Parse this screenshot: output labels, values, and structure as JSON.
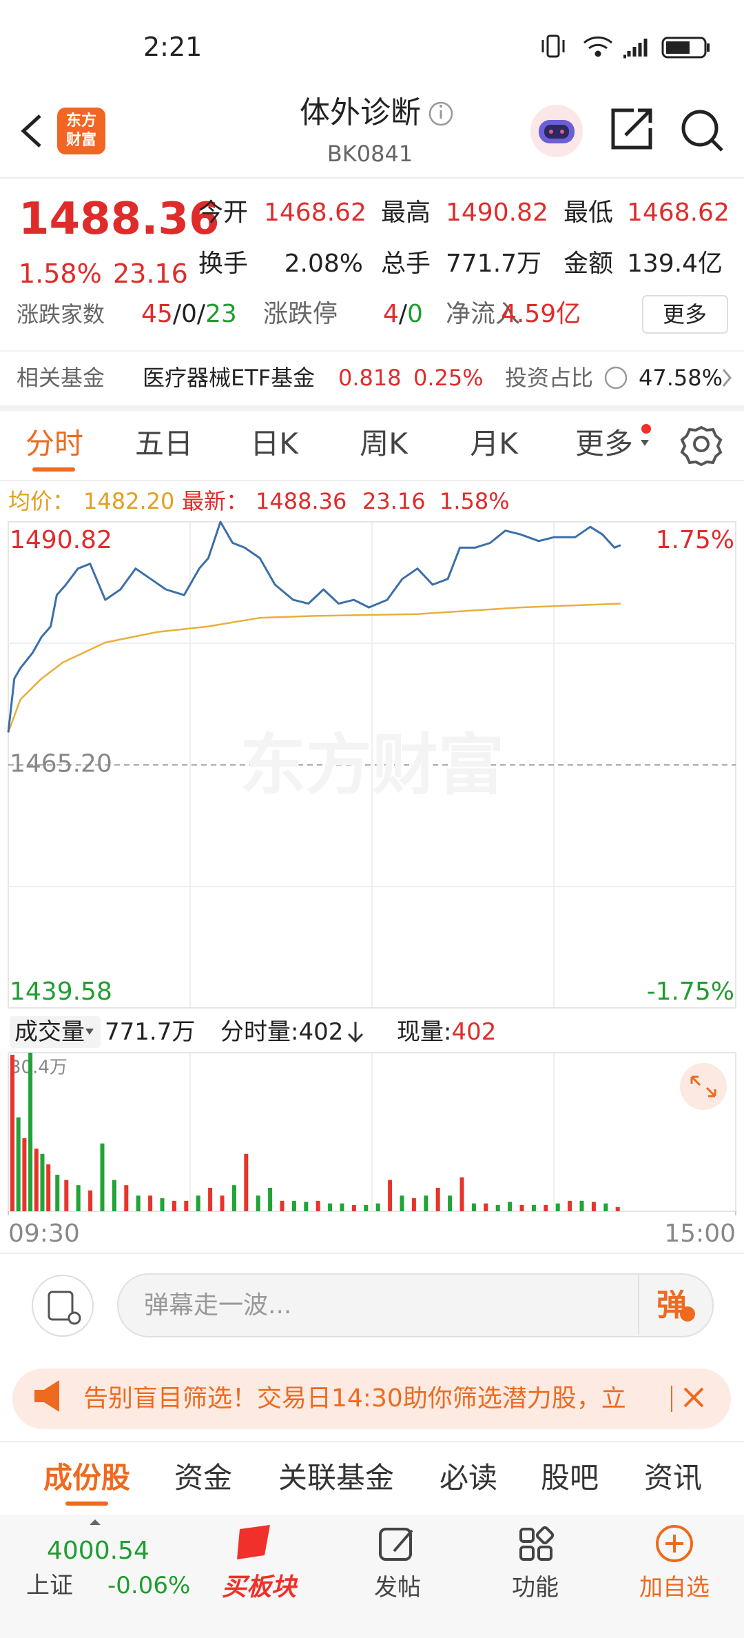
{
  "status_bar": {
    "time": "2:21"
  },
  "header": {
    "logo_line1": "东方",
    "logo_line2": "财富",
    "title": "体外诊断",
    "code": "BK0841"
  },
  "quote": {
    "price": "1488.36",
    "change_pct": "1.58%",
    "change": "23.16",
    "fields": [
      {
        "label": "今开",
        "value": "1468.62"
      },
      {
        "label": "最高",
        "value": "1490.82"
      },
      {
        "label": "最低",
        "value": "1468.62"
      },
      {
        "label": "换手",
        "value": "2.08%"
      },
      {
        "label": "总手",
        "value": "771.7万"
      },
      {
        "label": "金额",
        "value": "139.4亿"
      }
    ],
    "breadth_label": "涨跌家数",
    "breadth_up": "45",
    "breadth_flat": "0",
    "breadth_down": "23",
    "separator": "/",
    "limit_label": "涨跌停",
    "limit_up": "4",
    "limit_down": "0",
    "inflow_label": "净流入",
    "inflow_value": "4.59亿",
    "more_button": "更多"
  },
  "fund": {
    "label": "相关基金",
    "name": "医疗器械ETF基金",
    "price": "0.818",
    "change_pct": "0.25%",
    "share_label": "投资占比",
    "share_value": "47.58%"
  },
  "tabs": [
    "分时",
    "五日",
    "日K",
    "周K",
    "月K",
    "更多"
  ],
  "chart_header": {
    "avg_value": "1482.20",
    "latest_value": "1488.36",
    "change": "23.16",
    "change_pct": "1.58%"
  },
  "watermark": "东方财富",
  "volume_header": {
    "label": "成交量",
    "total": "771.7万",
    "minute_label": "分时量:",
    "minute_value": "402",
    "current_label": "现量:",
    "current_value": "402"
  },
  "chart_data": [
    {
      "type": "line",
      "xlim": [
        0,
        240
      ],
      "ylim": [
        1439.58,
        1490.82
      ],
      "yticks": [
        1490.82,
        {
          "value": 1465.2,
          "label": "1465.20"
        },
        1439.58
      ],
      "y2lim": [
        -1.75,
        1.75
      ],
      "y2ticks": [
        {
          "value": 1.75,
          "label": "1.75%"
        },
        {
          "value": -1.75,
          "label": "-1.75%"
        }
      ],
      "series": [
        {
          "name": "最新：",
          "color": "#3b6fa8",
          "x": [
            0,
            2,
            4,
            8,
            11,
            14,
            16,
            19,
            23,
            27,
            32,
            37,
            42,
            47,
            52,
            58,
            63,
            66,
            70,
            74,
            78,
            83,
            88,
            94,
            99,
            104,
            109,
            114,
            119,
            125,
            130,
            135,
            140,
            145,
            149,
            154,
            159,
            164,
            169,
            175,
            180,
            187,
            192,
            196,
            200,
            202
          ],
          "values": [
            1468.62,
            1474.3,
            1475.4,
            1477.0,
            1478.7,
            1479.8,
            1483.1,
            1484.2,
            1485.9,
            1486.4,
            1482.6,
            1483.7,
            1485.9,
            1484.8,
            1483.7,
            1483.1,
            1485.9,
            1487.0,
            1490.82,
            1488.6,
            1488.1,
            1487.0,
            1484.2,
            1482.6,
            1482.2,
            1483.7,
            1482.2,
            1482.6,
            1481.8,
            1482.6,
            1484.8,
            1485.9,
            1484.2,
            1484.8,
            1488.1,
            1488.1,
            1488.6,
            1489.9,
            1489.5,
            1488.8,
            1489.2,
            1489.2,
            1490.3,
            1489.5,
            1488.1,
            1488.36
          ]
        },
        {
          "name": "均价：",
          "color": "#e8b03a",
          "x": [
            0,
            4,
            11,
            18,
            32,
            49,
            66,
            83,
            100,
            135,
            169,
            202
          ],
          "values": [
            1468.62,
            1472.1,
            1474.3,
            1476.0,
            1478.1,
            1479.2,
            1479.8,
            1480.7,
            1480.9,
            1481.1,
            1481.8,
            1482.2
          ]
        }
      ]
    },
    {
      "type": "bar",
      "xlim": [
        0,
        240
      ],
      "xticks": [
        {
          "value": 0,
          "label": "09:30"
        },
        {
          "value": 240,
          "label": "15:00"
        }
      ],
      "ylim": [
        0,
        30.4
      ],
      "yticks": [
        {
          "value": 30.4,
          "label": "30.4万"
        }
      ],
      "x": [
        0,
        2,
        4,
        6,
        8,
        10,
        12,
        15,
        18,
        22,
        26,
        30,
        34,
        38,
        42,
        46,
        50,
        54,
        58,
        62,
        66,
        70,
        74,
        78,
        82,
        86,
        90,
        94,
        98,
        102,
        106,
        110,
        114,
        118,
        122,
        126,
        130,
        134,
        138,
        142,
        146,
        150,
        154,
        158,
        162,
        166,
        170,
        174,
        178,
        182,
        186,
        190,
        194,
        198,
        202
      ],
      "values": [
        30,
        18,
        14,
        30.4,
        12,
        11,
        9,
        7,
        6,
        5,
        4,
        13,
        6,
        5,
        3,
        3,
        2.5,
        2,
        2,
        3,
        4.5,
        3,
        5,
        11,
        3,
        4.5,
        2,
        2,
        1.8,
        2,
        1.5,
        1.5,
        1.2,
        1.2,
        1.5,
        6,
        3,
        2.5,
        3,
        4.5,
        3,
        6.5,
        1.5,
        1.5,
        1.2,
        1.8,
        1.2,
        1.2,
        1.2,
        1.5,
        2,
        2,
        1.8,
        1.5,
        0.8
      ],
      "colors": [
        "#e5352b",
        "#21a336",
        "#e5352b",
        "#21a336",
        "#e5352b",
        "#21a336",
        "#e5352b",
        "#21a336",
        "#e5352b",
        "#21a336",
        "#e5352b",
        "#21a336",
        "#21a336",
        "#e5352b",
        "#21a336",
        "#e5352b",
        "#21a336",
        "#e5352b",
        "#e5352b",
        "#21a336",
        "#e5352b",
        "#e5352b",
        "#21a336",
        "#e5352b",
        "#21a336",
        "#21a336",
        "#e5352b",
        "#21a336",
        "#21a336",
        "#e5352b",
        "#21a336",
        "#21a336",
        "#e5352b",
        "#21a336",
        "#21a336",
        "#e5352b",
        "#21a336",
        "#e5352b",
        "#21a336",
        "#e5352b",
        "#21a336",
        "#e5352b",
        "#21a336",
        "#e5352b",
        "#21a336",
        "#21a336",
        "#e5352b",
        "#21a336",
        "#e5352b",
        "#21a336",
        "#e5352b",
        "#21a336",
        "#e5352b",
        "#21a336",
        "#e5352b"
      ]
    }
  ],
  "danmaku": {
    "placeholder": "弹幕走一波...",
    "button": "弹"
  },
  "banner": {
    "text": "告别盲目筛选！交易日14:30助你筛选潜力股，立"
  },
  "bottom_tabs": [
    "成份股",
    "资金",
    "关联基金",
    "必读",
    "股吧",
    "资讯"
  ],
  "nav": {
    "index_value": "4000.54",
    "index_name": "上证",
    "index_change": "-0.06%",
    "items": [
      "买板块",
      "发帖",
      "功能",
      "加自选"
    ]
  }
}
